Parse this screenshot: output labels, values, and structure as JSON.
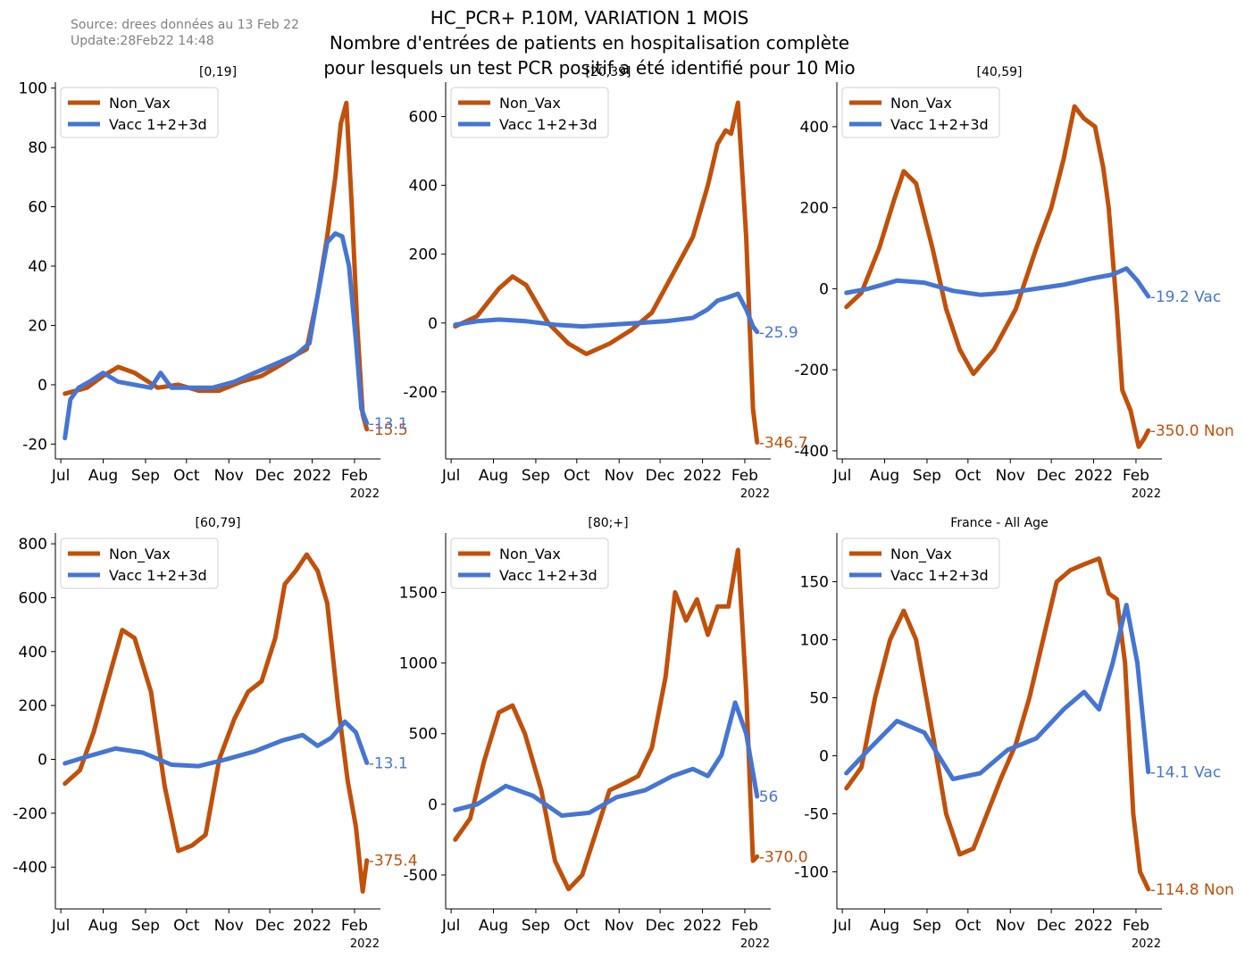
{
  "header": {
    "source": "Source: drees données au 13 Feb 22",
    "update": "Update:28Feb22 14:48",
    "title_line1": "HC_PCR+ P.10M, VARIATION 1 MOIS",
    "title_line2": "Nombre d'entrées de patients en hospitalisation complète",
    "title_line3": "pour lesquels un test PCR positif a été identifié pour 10 Mio"
  },
  "colors": {
    "non_vax": "#c1500a",
    "vacc": "#4575d4"
  },
  "legend": {
    "non_vax": "Non_Vax",
    "vacc": "Vacc 1+2+3d"
  },
  "x_ticks": [
    "Jul",
    "Aug",
    "Sep",
    "Oct",
    "Nov",
    "Dec",
    "2022",
    "Feb"
  ],
  "x_year": "2022",
  "chart_data": [
    {
      "type": "line",
      "title": "[0,19]",
      "ylim": [
        -25,
        102
      ],
      "y_ticks": [
        -20,
        0,
        20,
        40,
        60,
        80,
        100
      ],
      "end_labels": {
        "non_vax": "-15.5",
        "vacc": "-13.1"
      },
      "series": [
        {
          "name": "Non_Vax",
          "x": [
            "2021-07-04",
            "2021-07-20",
            "2021-08-01",
            "2021-08-12",
            "2021-08-24",
            "2021-09-10",
            "2021-09-25",
            "2021-10-10",
            "2021-10-25",
            "2021-11-10",
            "2021-11-25",
            "2021-12-10",
            "2021-12-20",
            "2021-12-28",
            "2022-01-05",
            "2022-01-12",
            "2022-01-18",
            "2022-01-22",
            "2022-01-26",
            "2022-01-30",
            "2022-02-03",
            "2022-02-07",
            "2022-02-10"
          ],
          "y": [
            -3,
            -1,
            3,
            6,
            4,
            -1,
            0,
            -2,
            -2,
            1,
            3,
            7,
            10,
            12,
            30,
            50,
            70,
            88,
            95,
            60,
            20,
            -10,
            -15
          ]
        },
        {
          "name": "Vacc 1+2+3d",
          "x": [
            "2021-07-04",
            "2021-07-08",
            "2021-07-14",
            "2021-07-22",
            "2021-08-01",
            "2021-08-12",
            "2021-08-24",
            "2021-09-05",
            "2021-09-12",
            "2021-09-20",
            "2021-10-05",
            "2021-10-20",
            "2021-11-05",
            "2021-11-20",
            "2021-12-05",
            "2021-12-20",
            "2021-12-30",
            "2022-01-05",
            "2022-01-12",
            "2022-01-18",
            "2022-01-23",
            "2022-01-28",
            "2022-02-02",
            "2022-02-06",
            "2022-02-10"
          ],
          "y": [
            -18,
            -5,
            -1,
            1,
            4,
            1,
            0,
            -1,
            4,
            -1,
            -1,
            -1,
            1,
            4,
            7,
            10,
            14,
            30,
            48,
            51,
            50,
            40,
            15,
            -8,
            -13
          ]
        }
      ]
    },
    {
      "type": "line",
      "title": "[20,39]",
      "ylim": [
        -395,
        700
      ],
      "y_ticks": [
        -200,
        0,
        200,
        400,
        600
      ],
      "end_labels": {
        "non_vax": "-346.7",
        "vacc": "-25.9"
      },
      "series": [
        {
          "name": "Non_Vax",
          "x": [
            "2021-07-04",
            "2021-07-20",
            "2021-08-05",
            "2021-08-15",
            "2021-08-25",
            "2021-09-10",
            "2021-09-25",
            "2021-10-08",
            "2021-10-25",
            "2021-11-10",
            "2021-11-25",
            "2021-12-10",
            "2021-12-25",
            "2022-01-05",
            "2022-01-12",
            "2022-01-18",
            "2022-01-22",
            "2022-01-27",
            "2022-02-02",
            "2022-02-07",
            "2022-02-10"
          ],
          "y": [
            -10,
            20,
            100,
            135,
            110,
            0,
            -60,
            -90,
            -60,
            -20,
            30,
            140,
            250,
            400,
            520,
            560,
            550,
            640,
            250,
            -250,
            -347
          ]
        },
        {
          "name": "Vacc 1+2+3d",
          "x": [
            "2021-07-04",
            "2021-07-20",
            "2021-08-05",
            "2021-08-25",
            "2021-09-15",
            "2021-10-05",
            "2021-10-25",
            "2021-11-15",
            "2021-12-05",
            "2021-12-25",
            "2022-01-05",
            "2022-01-12",
            "2022-01-20",
            "2022-01-27",
            "2022-02-02",
            "2022-02-07",
            "2022-02-10"
          ],
          "y": [
            -5,
            5,
            10,
            5,
            -5,
            -10,
            -5,
            0,
            5,
            15,
            40,
            65,
            75,
            85,
            40,
            -10,
            -26
          ]
        }
      ]
    },
    {
      "type": "line",
      "title": "[40,59]",
      "ylim": [
        -420,
        510
      ],
      "y_ticks": [
        -400,
        -200,
        0,
        200,
        400
      ],
      "end_labels": {
        "non_vax": "-350.0 Non",
        "vacc": "-19.2 Vac"
      },
      "series": [
        {
          "name": "Non_Vax",
          "x": [
            "2021-07-04",
            "2021-07-15",
            "2021-07-28",
            "2021-08-08",
            "2021-08-15",
            "2021-08-24",
            "2021-09-05",
            "2021-09-15",
            "2021-09-25",
            "2021-10-05",
            "2021-10-20",
            "2021-11-05",
            "2021-11-20",
            "2021-12-01",
            "2021-12-10",
            "2021-12-18",
            "2021-12-25",
            "2022-01-02",
            "2022-01-08",
            "2022-01-12",
            "2022-01-18",
            "2022-01-22",
            "2022-01-28",
            "2022-02-03",
            "2022-02-07",
            "2022-02-10"
          ],
          "y": [
            -45,
            -10,
            100,
            220,
            290,
            260,
            100,
            -50,
            -150,
            -210,
            -150,
            -50,
            100,
            200,
            320,
            450,
            420,
            400,
            300,
            200,
            -50,
            -250,
            -300,
            -390,
            -370,
            -350
          ]
        },
        {
          "name": "Vacc 1+2+3d",
          "x": [
            "2021-07-04",
            "2021-07-20",
            "2021-08-10",
            "2021-08-30",
            "2021-09-20",
            "2021-10-10",
            "2021-10-30",
            "2021-11-20",
            "2021-12-10",
            "2021-12-30",
            "2022-01-15",
            "2022-01-25",
            "2022-02-02",
            "2022-02-10"
          ],
          "y": [
            -10,
            0,
            20,
            15,
            -5,
            -15,
            -10,
            0,
            10,
            25,
            35,
            50,
            20,
            -19
          ]
        }
      ]
    },
    {
      "type": "line",
      "title": "[60,79]",
      "ylim": [
        -555,
        840
      ],
      "y_ticks": [
        -400,
        -200,
        0,
        200,
        400,
        600,
        800
      ],
      "end_labels": {
        "non_vax": "-375.4",
        "vacc": "-13.1"
      },
      "series": [
        {
          "name": "Non_Vax",
          "x": [
            "2021-07-04",
            "2021-07-15",
            "2021-07-25",
            "2021-08-05",
            "2021-08-15",
            "2021-08-24",
            "2021-09-05",
            "2021-09-15",
            "2021-09-25",
            "2021-10-05",
            "2021-10-15",
            "2021-10-25",
            "2021-11-05",
            "2021-11-15",
            "2021-11-25",
            "2021-12-05",
            "2021-12-12",
            "2021-12-20",
            "2021-12-28",
            "2022-01-05",
            "2022-01-12",
            "2022-01-20",
            "2022-01-27",
            "2022-02-02",
            "2022-02-07",
            "2022-02-10"
          ],
          "y": [
            -90,
            -40,
            100,
            300,
            480,
            450,
            250,
            -100,
            -340,
            -320,
            -280,
            0,
            150,
            250,
            290,
            450,
            650,
            700,
            760,
            700,
            580,
            200,
            -80,
            -250,
            -490,
            -375
          ]
        },
        {
          "name": "Vacc 1+2+3d",
          "x": [
            "2021-07-04",
            "2021-07-20",
            "2021-08-10",
            "2021-08-30",
            "2021-09-20",
            "2021-10-10",
            "2021-10-30",
            "2021-11-20",
            "2021-12-10",
            "2021-12-25",
            "2022-01-05",
            "2022-01-15",
            "2022-01-25",
            "2022-02-02",
            "2022-02-10"
          ],
          "y": [
            -15,
            10,
            40,
            25,
            -20,
            -25,
            0,
            30,
            70,
            90,
            50,
            80,
            140,
            100,
            -13
          ]
        }
      ]
    },
    {
      "type": "line",
      "title": "[80;+]",
      "ylim": [
        -740,
        1920
      ],
      "y_ticks": [
        -500,
        0,
        500,
        1000,
        1500
      ],
      "end_labels": {
        "non_vax": "-370.0",
        "vacc": "56"
      },
      "series": [
        {
          "name": "Non_Vax",
          "x": [
            "2021-07-04",
            "2021-07-15",
            "2021-07-25",
            "2021-08-05",
            "2021-08-15",
            "2021-08-24",
            "2021-09-05",
            "2021-09-15",
            "2021-09-25",
            "2021-10-05",
            "2021-10-15",
            "2021-10-25",
            "2021-11-05",
            "2021-11-15",
            "2021-11-25",
            "2021-12-05",
            "2021-12-12",
            "2021-12-20",
            "2021-12-28",
            "2022-01-05",
            "2022-01-12",
            "2022-01-20",
            "2022-01-27",
            "2022-02-02",
            "2022-02-07",
            "2022-02-10"
          ],
          "y": [
            -250,
            -100,
            300,
            650,
            700,
            500,
            100,
            -400,
            -600,
            -500,
            -200,
            100,
            150,
            200,
            400,
            900,
            1500,
            1300,
            1450,
            1200,
            1400,
            1400,
            1800,
            800,
            -400,
            -370
          ]
        },
        {
          "name": "Vacc 1+2+3d",
          "x": [
            "2021-07-04",
            "2021-07-20",
            "2021-08-10",
            "2021-08-30",
            "2021-09-20",
            "2021-10-10",
            "2021-10-30",
            "2021-11-20",
            "2021-12-10",
            "2021-12-25",
            "2022-01-05",
            "2022-01-15",
            "2022-01-25",
            "2022-02-02",
            "2022-02-10"
          ],
          "y": [
            -40,
            0,
            130,
            60,
            -80,
            -60,
            50,
            100,
            200,
            250,
            200,
            350,
            720,
            500,
            56
          ]
        }
      ]
    },
    {
      "type": "line",
      "title": "France - All Age",
      "ylim": [
        -132,
        192
      ],
      "y_ticks": [
        -100,
        -50,
        0,
        50,
        100,
        150
      ],
      "end_labels": {
        "non_vax": "-114.8 Non",
        "vacc": "-14.1 Vac"
      },
      "series": [
        {
          "name": "Non_Vax",
          "x": [
            "2021-07-04",
            "2021-07-15",
            "2021-07-25",
            "2021-08-05",
            "2021-08-15",
            "2021-08-24",
            "2021-09-05",
            "2021-09-15",
            "2021-09-25",
            "2021-10-05",
            "2021-10-15",
            "2021-10-25",
            "2021-11-05",
            "2021-11-15",
            "2021-11-25",
            "2021-12-05",
            "2021-12-15",
            "2021-12-25",
            "2022-01-05",
            "2022-01-12",
            "2022-01-18",
            "2022-01-24",
            "2022-01-30",
            "2022-02-04",
            "2022-02-10"
          ],
          "y": [
            -28,
            -10,
            50,
            100,
            125,
            100,
            20,
            -50,
            -85,
            -80,
            -50,
            -20,
            10,
            50,
            100,
            150,
            160,
            165,
            170,
            140,
            135,
            80,
            -50,
            -100,
            -115
          ]
        },
        {
          "name": "Vacc 1+2+3d",
          "x": [
            "2021-07-04",
            "2021-07-20",
            "2021-08-10",
            "2021-08-30",
            "2021-09-20",
            "2021-10-10",
            "2021-10-30",
            "2021-11-20",
            "2021-12-10",
            "2021-12-25",
            "2022-01-05",
            "2022-01-15",
            "2022-01-25",
            "2022-02-02",
            "2022-02-10"
          ],
          "y": [
            -15,
            5,
            30,
            20,
            -20,
            -15,
            5,
            15,
            40,
            55,
            40,
            80,
            130,
            80,
            -14
          ]
        }
      ]
    }
  ]
}
